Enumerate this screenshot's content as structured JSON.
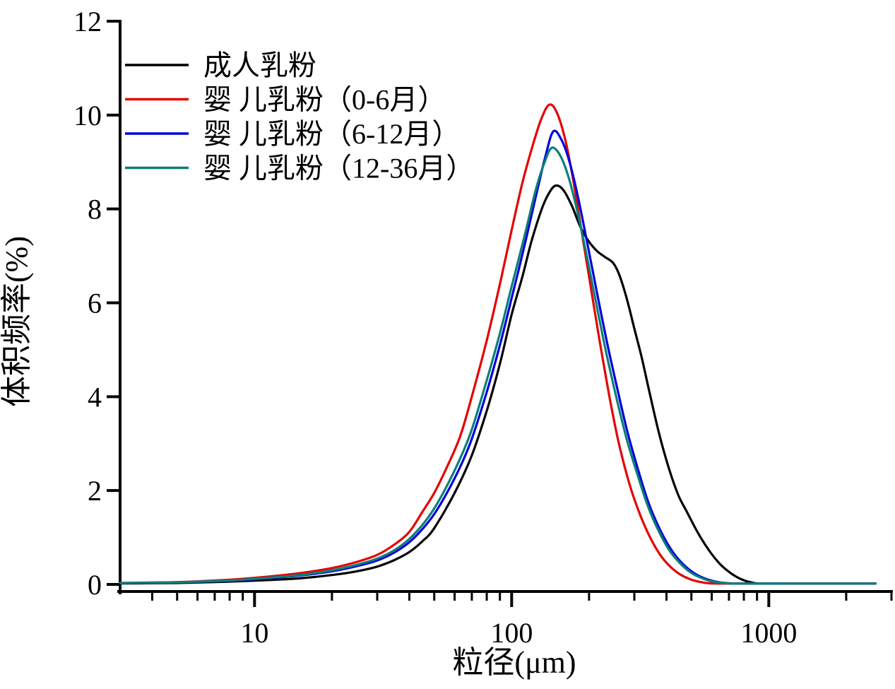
{
  "chart_data": {
    "type": "line",
    "title": "",
    "xlabel": "粒径(μm)",
    "ylabel": "体积频率(%)",
    "x_scale": "log",
    "xlim": [
      3,
      3000
    ],
    "ylim": [
      0,
      12
    ],
    "x_major_ticks": [
      10,
      100,
      1000
    ],
    "x_major_tick_labels": [
      "10",
      "100",
      "1000"
    ],
    "x_minor_ticks": [
      4,
      5,
      6,
      7,
      8,
      9,
      20,
      30,
      40,
      50,
      60,
      70,
      80,
      90,
      200,
      300,
      400,
      500,
      600,
      700,
      800,
      900,
      2000,
      3000
    ],
    "y_major_ticks": [
      0,
      2,
      4,
      6,
      8,
      10,
      12
    ],
    "y_major_tick_labels": [
      "0",
      "2",
      "4",
      "6",
      "8",
      "10",
      "12"
    ],
    "grid": "off",
    "legend_position": "top-left-inside",
    "axis_color": "#000000",
    "background": "#ffffff",
    "series": [
      {
        "name": "成人乳粉",
        "color": "#000000",
        "peak": {
          "x_um": 150,
          "y_pct": 8.5
        },
        "points": [
          [
            3,
            0.02
          ],
          [
            4,
            0.025
          ],
          [
            5,
            0.03
          ],
          [
            6,
            0.04
          ],
          [
            8,
            0.06
          ],
          [
            10,
            0.08
          ],
          [
            12,
            0.1
          ],
          [
            15,
            0.13
          ],
          [
            20,
            0.2
          ],
          [
            25,
            0.28
          ],
          [
            30,
            0.38
          ],
          [
            35,
            0.52
          ],
          [
            40,
            0.69
          ],
          [
            45,
            0.92
          ],
          [
            50,
            1.2
          ],
          [
            60,
            1.95
          ],
          [
            70,
            2.75
          ],
          [
            80,
            3.7
          ],
          [
            90,
            4.7
          ],
          [
            100,
            5.75
          ],
          [
            110,
            6.55
          ],
          [
            120,
            7.35
          ],
          [
            132,
            8.05
          ],
          [
            142,
            8.4
          ],
          [
            150,
            8.5
          ],
          [
            160,
            8.38
          ],
          [
            172,
            8.05
          ],
          [
            185,
            7.62
          ],
          [
            200,
            7.3
          ],
          [
            215,
            7.1
          ],
          [
            230,
            6.98
          ],
          [
            248,
            6.85
          ],
          [
            262,
            6.6
          ],
          [
            280,
            6.1
          ],
          [
            300,
            5.45
          ],
          [
            320,
            4.85
          ],
          [
            345,
            4.05
          ],
          [
            375,
            3.2
          ],
          [
            410,
            2.45
          ],
          [
            445,
            1.9
          ],
          [
            480,
            1.55
          ],
          [
            530,
            1.1
          ],
          [
            590,
            0.7
          ],
          [
            650,
            0.42
          ],
          [
            720,
            0.22
          ],
          [
            790,
            0.1
          ],
          [
            860,
            0.04
          ],
          [
            930,
            0.02
          ],
          [
            1200,
            0.02
          ],
          [
            1800,
            0.02
          ],
          [
            2600,
            0.02
          ]
        ]
      },
      {
        "name": "婴 儿乳粉（0-6月）",
        "color": "#e60000",
        "peak": {
          "x_um": 140,
          "y_pct": 10.22
        },
        "points": [
          [
            3,
            0.03
          ],
          [
            4,
            0.04
          ],
          [
            5,
            0.05
          ],
          [
            6,
            0.065
          ],
          [
            8,
            0.1
          ],
          [
            10,
            0.14
          ],
          [
            12,
            0.18
          ],
          [
            15,
            0.24
          ],
          [
            20,
            0.35
          ],
          [
            25,
            0.48
          ],
          [
            30,
            0.63
          ],
          [
            35,
            0.85
          ],
          [
            40,
            1.12
          ],
          [
            45,
            1.55
          ],
          [
            50,
            1.95
          ],
          [
            56,
            2.5
          ],
          [
            63,
            3.15
          ],
          [
            70,
            4.0
          ],
          [
            80,
            5.2
          ],
          [
            90,
            6.4
          ],
          [
            100,
            7.55
          ],
          [
            110,
            8.55
          ],
          [
            120,
            9.3
          ],
          [
            130,
            9.9
          ],
          [
            140,
            10.22
          ],
          [
            150,
            10.05
          ],
          [
            162,
            9.45
          ],
          [
            175,
            8.5
          ],
          [
            190,
            7.3
          ],
          [
            205,
            6.2
          ],
          [
            222,
            5.05
          ],
          [
            240,
            4.0
          ],
          [
            260,
            3.05
          ],
          [
            285,
            2.2
          ],
          [
            310,
            1.6
          ],
          [
            340,
            1.08
          ],
          [
            375,
            0.66
          ],
          [
            410,
            0.4
          ],
          [
            450,
            0.22
          ],
          [
            495,
            0.11
          ],
          [
            545,
            0.05
          ],
          [
            610,
            0.02
          ],
          [
            900,
            0.02
          ],
          [
            1800,
            0.02
          ],
          [
            2600,
            0.02
          ]
        ]
      },
      {
        "name": "婴 儿乳粉（6-12月）",
        "color": "#0000dd",
        "peak": {
          "x_um": 145,
          "y_pct": 9.65
        },
        "points": [
          [
            3,
            0.025
          ],
          [
            5,
            0.04
          ],
          [
            8,
            0.08
          ],
          [
            10,
            0.11
          ],
          [
            15,
            0.19
          ],
          [
            20,
            0.28
          ],
          [
            25,
            0.39
          ],
          [
            30,
            0.51
          ],
          [
            35,
            0.68
          ],
          [
            40,
            0.9
          ],
          [
            45,
            1.18
          ],
          [
            50,
            1.5
          ],
          [
            56,
            1.95
          ],
          [
            63,
            2.5
          ],
          [
            70,
            3.1
          ],
          [
            80,
            4.1
          ],
          [
            90,
            5.1
          ],
          [
            100,
            6.1
          ],
          [
            112,
            7.2
          ],
          [
            124,
            8.25
          ],
          [
            135,
            9.1
          ],
          [
            145,
            9.65
          ],
          [
            156,
            9.48
          ],
          [
            168,
            9.0
          ],
          [
            182,
            8.2
          ],
          [
            198,
            7.2
          ],
          [
            215,
            6.2
          ],
          [
            235,
            5.15
          ],
          [
            258,
            4.15
          ],
          [
            282,
            3.25
          ],
          [
            310,
            2.45
          ],
          [
            340,
            1.75
          ],
          [
            375,
            1.2
          ],
          [
            415,
            0.76
          ],
          [
            455,
            0.48
          ],
          [
            500,
            0.28
          ],
          [
            550,
            0.15
          ],
          [
            610,
            0.07
          ],
          [
            680,
            0.03
          ],
          [
            760,
            0.02
          ],
          [
            1200,
            0.02
          ],
          [
            1800,
            0.02
          ],
          [
            2600,
            0.02
          ]
        ]
      },
      {
        "name": "婴 儿乳粉（12-36月）",
        "color": "#0b7f78",
        "peak": {
          "x_um": 143,
          "y_pct": 9.3
        },
        "points": [
          [
            3,
            0.03
          ],
          [
            5,
            0.045
          ],
          [
            8,
            0.085
          ],
          [
            10,
            0.12
          ],
          [
            15,
            0.2
          ],
          [
            20,
            0.3
          ],
          [
            25,
            0.42
          ],
          [
            30,
            0.55
          ],
          [
            35,
            0.73
          ],
          [
            40,
            0.97
          ],
          [
            45,
            1.27
          ],
          [
            50,
            1.62
          ],
          [
            56,
            2.1
          ],
          [
            63,
            2.68
          ],
          [
            70,
            3.3
          ],
          [
            80,
            4.35
          ],
          [
            90,
            5.35
          ],
          [
            100,
            6.35
          ],
          [
            112,
            7.4
          ],
          [
            124,
            8.4
          ],
          [
            134,
            8.98
          ],
          [
            143,
            9.3
          ],
          [
            154,
            9.15
          ],
          [
            166,
            8.7
          ],
          [
            180,
            7.95
          ],
          [
            196,
            7.0
          ],
          [
            213,
            6.0
          ],
          [
            233,
            4.95
          ],
          [
            255,
            4.0
          ],
          [
            280,
            3.1
          ],
          [
            308,
            2.35
          ],
          [
            338,
            1.68
          ],
          [
            372,
            1.15
          ],
          [
            410,
            0.73
          ],
          [
            450,
            0.46
          ],
          [
            495,
            0.26
          ],
          [
            545,
            0.14
          ],
          [
            605,
            0.06
          ],
          [
            670,
            0.03
          ],
          [
            750,
            0.02
          ],
          [
            1200,
            0.02
          ],
          [
            1800,
            0.02
          ],
          [
            2600,
            0.02
          ]
        ]
      }
    ]
  }
}
